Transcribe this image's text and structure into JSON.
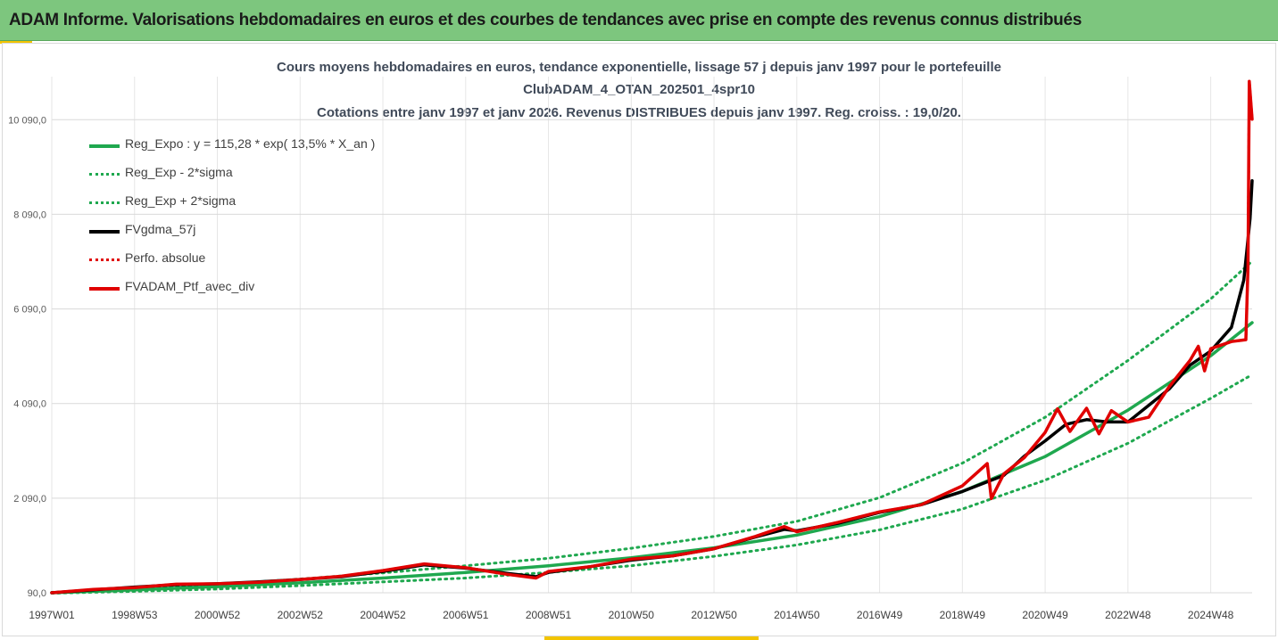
{
  "banner": {
    "title": "ADAM Informe. Valorisations hebdomadaires en euros et des courbes de tendances avec prise en compte des revenus connus distribués"
  },
  "colors": {
    "banner_bg": "#7dc67e",
    "accent": "#f2c400",
    "green": "#1fa84f",
    "black": "#000000",
    "red": "#e00000"
  },
  "chart_data": {
    "type": "line",
    "title_lines": [
      "Cours moyens hebdomadaires  en euros, tendance exponentielle, lissage 57 j depuis janv 1997 pour le portefeuille",
      "ClubADAM_4_OTAN_202501_4spr10",
      "Cotations  entre janv 1997 et janv 2026. Revenus DISTRIBUES depuis janv 1997. Reg. croiss. : 19,0/20."
    ],
    "y_ticks": [
      "90,0",
      "2 090,0",
      "4 090,0",
      "6 090,0",
      "8 090,0",
      "10 090,0"
    ],
    "y_tick_values": [
      90,
      2090,
      4090,
      6090,
      8090,
      10090
    ],
    "ylim": [
      90,
      11000
    ],
    "x_ticks": [
      "1997W01",
      "1998W53",
      "2000W52",
      "2002W52",
      "2004W52",
      "2006W51",
      "2008W51",
      "2010W50",
      "2012W50",
      "2014W50",
      "2016W49",
      "2018W49",
      "2020W49",
      "2022W48",
      "2024W48"
    ],
    "x_tick_years": [
      1997.0,
      1999.0,
      2001.0,
      2003.0,
      2005.0,
      2007.0,
      2009.0,
      2011.0,
      2013.0,
      2015.0,
      2017.0,
      2019.0,
      2021.0,
      2023.0,
      2025.0
    ],
    "xlim": [
      1997.0,
      2026.0
    ],
    "grid": true,
    "legend_position": "top-left",
    "series": [
      {
        "name": "Reg_Expo : y = 115,28 * exp( 13,5% *  X_an )",
        "color": "#1fa84f",
        "style": "solid",
        "x": [
          1997,
          1999,
          2001,
          2003,
          2005,
          2007,
          2009,
          2011,
          2013,
          2015,
          2017,
          2019,
          2021,
          2023,
          2025,
          2026
        ],
        "values": [
          90,
          150,
          220,
          300,
          400,
          520,
          660,
          830,
          1040,
          1310,
          1700,
          2230,
          2970,
          3950,
          5100,
          5800
        ]
      },
      {
        "name": "Reg_Exp - 2*sigma",
        "color": "#1fa84f",
        "style": "dotted",
        "x": [
          1997,
          1999,
          2001,
          2003,
          2005,
          2007,
          2009,
          2011,
          2013,
          2015,
          2017,
          2019,
          2021,
          2023,
          2025,
          2026
        ],
        "values": [
          80,
          120,
          170,
          240,
          320,
          400,
          520,
          660,
          860,
          1100,
          1420,
          1860,
          2470,
          3250,
          4200,
          4700
        ]
      },
      {
        "name": "Reg_Exp + 2*sigma",
        "color": "#1fa84f",
        "style": "dotted",
        "x": [
          1997,
          1999,
          2001,
          2003,
          2005,
          2007,
          2009,
          2011,
          2013,
          2015,
          2017,
          2019,
          2021,
          2023,
          2025,
          2026
        ],
        "values": [
          100,
          170,
          260,
          380,
          510,
          660,
          820,
          1030,
          1280,
          1600,
          2100,
          2830,
          3800,
          5000,
          6300,
          7100
        ]
      },
      {
        "name": "FVgdma_57j",
        "color": "#000000",
        "style": "solid",
        "x": [
          1997,
          1998,
          1999,
          2000,
          2001,
          2002,
          2003,
          2004,
          2005,
          2006,
          2007,
          2008,
          2008.7,
          2009,
          2010,
          2011,
          2012,
          2013,
          2014,
          2014.7,
          2015,
          2016,
          2017,
          2018,
          2019,
          2020,
          2020.5,
          2021,
          2021.5,
          2022,
          2022.5,
          2023,
          2024,
          2024.5,
          2025,
          2025.5,
          2025.8,
          2025.95,
          2026
        ],
        "values": [
          90,
          150,
          210,
          260,
          280,
          320,
          370,
          430,
          540,
          680,
          610,
          500,
          430,
          520,
          640,
          780,
          870,
          1020,
          1270,
          1430,
          1400,
          1560,
          1790,
          1950,
          2230,
          2570,
          2980,
          3300,
          3650,
          3750,
          3700,
          3700,
          4400,
          4900,
          5200,
          5700,
          6700,
          8000,
          8800
        ]
      },
      {
        "name": "Perfo. absolue",
        "color": "#e00000",
        "style": "dotted",
        "x": [
          1997,
          1998,
          1999,
          2000,
          2001,
          2002,
          2003,
          2004,
          2005,
          2006,
          2007,
          2008,
          2008.7,
          2009,
          2010,
          2011,
          2012,
          2013,
          2014,
          2014.7,
          2015,
          2016,
          2017,
          2018,
          2019,
          2019.6,
          2019.7,
          2020,
          2020.5,
          2021,
          2021.3,
          2021.6,
          2022,
          2022.3,
          2022.6,
          2023,
          2023.5,
          2024,
          2024.5,
          2024.7,
          2024.85,
          2025,
          2025.5,
          2025.85,
          2025.9,
          2025.93,
          2026
        ],
        "values": [
          90,
          160,
          200,
          270,
          280,
          310,
          370,
          440,
          560,
          700,
          620,
          480,
          400,
          540,
          640,
          800,
          870,
          1020,
          1280,
          1490,
          1380,
          1580,
          1800,
          1950,
          2350,
          2820,
          2080,
          2600,
          2950,
          3480,
          3980,
          3500,
          3990,
          3450,
          3940,
          3700,
          3800,
          4450,
          5000,
          5300,
          4780,
          5250,
          5400,
          5440,
          7000,
          10900,
          10100
        ]
      },
      {
        "name": "FVADAM_Ptf_avec_div",
        "color": "#e00000",
        "style": "solid",
        "x": [
          1997,
          1998,
          1999,
          2000,
          2001,
          2002,
          2003,
          2004,
          2005,
          2006,
          2007,
          2008,
          2008.7,
          2009,
          2010,
          2011,
          2012,
          2013,
          2014,
          2014.7,
          2015,
          2016,
          2017,
          2018,
          2019,
          2019.6,
          2019.7,
          2020,
          2020.5,
          2021,
          2021.3,
          2021.6,
          2022,
          2022.3,
          2022.6,
          2023,
          2023.5,
          2024,
          2024.5,
          2024.7,
          2024.85,
          2025,
          2025.5,
          2025.85,
          2025.9,
          2025.93,
          2026
        ],
        "values": [
          90,
          160,
          200,
          270,
          280,
          310,
          370,
          440,
          560,
          700,
          620,
          480,
          400,
          540,
          640,
          800,
          870,
          1020,
          1280,
          1490,
          1380,
          1580,
          1800,
          1950,
          2350,
          2820,
          2080,
          2600,
          2950,
          3480,
          3980,
          3500,
          3990,
          3450,
          3940,
          3700,
          3800,
          4450,
          5000,
          5300,
          4780,
          5250,
          5400,
          5440,
          7000,
          10900,
          10100
        ]
      }
    ]
  }
}
